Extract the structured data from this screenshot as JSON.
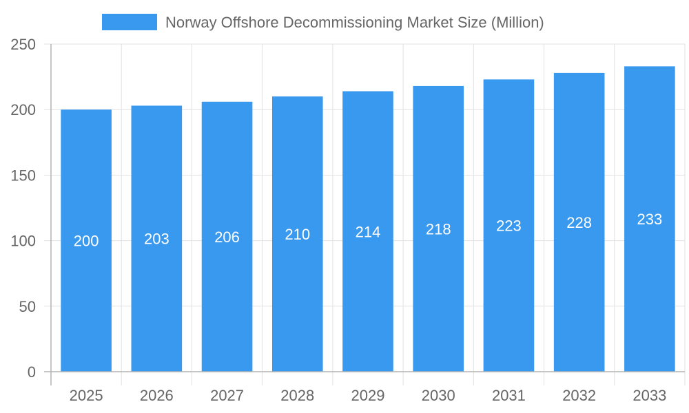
{
  "chart_data": {
    "type": "bar",
    "title": "",
    "xlabel": "",
    "ylabel": "",
    "categories": [
      "2025",
      "2026",
      "2027",
      "2028",
      "2029",
      "2030",
      "2031",
      "2032",
      "2033"
    ],
    "series": [
      {
        "name": "Norway Offshore Decommissioning Market Size (Million)",
        "values": [
          200,
          203,
          206,
          210,
          214,
          218,
          223,
          228,
          233
        ],
        "color": "#3899ef"
      }
    ],
    "ylim": [
      0,
      250
    ],
    "yticks": [
      0,
      50,
      100,
      150,
      200,
      250
    ],
    "grid": true,
    "legend_position": "top-center",
    "data_labels": true
  }
}
